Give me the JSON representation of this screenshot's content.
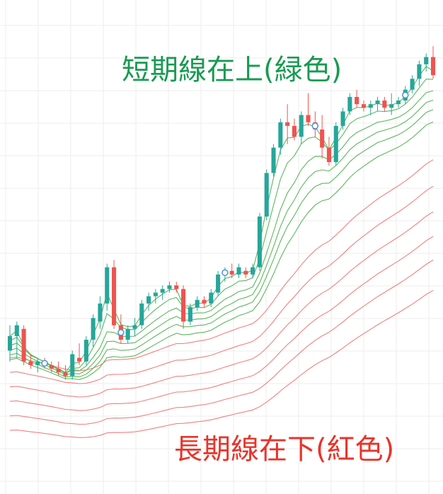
{
  "annotations": {
    "short_term": "短期線在上(緑色)",
    "long_term": "長期線在下(紅色)"
  },
  "colors": {
    "up_candle": "#26a69a",
    "down_candle": "#ef5350",
    "short_ema": "#5cb85c",
    "long_ema": "#f08080",
    "marker": "#4a90d9",
    "grid": "#eeeeee",
    "short_label": "#1a9a52",
    "long_label": "#e8342a"
  },
  "chart_data": {
    "type": "candlestick",
    "grid": true,
    "candles": [
      {
        "o": 34,
        "h": 41,
        "l": 31,
        "c": 38
      },
      {
        "o": 38,
        "h": 42,
        "l": 32,
        "c": 41
      },
      {
        "o": 40,
        "h": 41,
        "l": 30,
        "c": 31
      },
      {
        "o": 31,
        "h": 33,
        "l": 29,
        "c": 30
      },
      {
        "o": 30,
        "h": 32,
        "l": 28,
        "c": 31
      },
      {
        "o": 31,
        "h": 32,
        "l": 29,
        "c": 30
      },
      {
        "o": 30,
        "h": 31,
        "l": 28,
        "c": 29
      },
      {
        "o": 29,
        "h": 31,
        "l": 27,
        "c": 28
      },
      {
        "o": 28,
        "h": 30,
        "l": 26,
        "c": 27
      },
      {
        "o": 27,
        "h": 34,
        "l": 26,
        "c": 33
      },
      {
        "o": 32,
        "h": 36,
        "l": 30,
        "c": 31
      },
      {
        "o": 31,
        "h": 38,
        "l": 30,
        "c": 37
      },
      {
        "o": 37,
        "h": 44,
        "l": 35,
        "c": 43
      },
      {
        "o": 42,
        "h": 49,
        "l": 40,
        "c": 47
      },
      {
        "o": 47,
        "h": 58,
        "l": 45,
        "c": 57
      },
      {
        "o": 57,
        "h": 59,
        "l": 40,
        "c": 41
      },
      {
        "o": 41,
        "h": 44,
        "l": 36,
        "c": 37
      },
      {
        "o": 37,
        "h": 41,
        "l": 36,
        "c": 40
      },
      {
        "o": 40,
        "h": 43,
        "l": 38,
        "c": 41
      },
      {
        "o": 41,
        "h": 48,
        "l": 40,
        "c": 47
      },
      {
        "o": 47,
        "h": 50,
        "l": 45,
        "c": 49
      },
      {
        "o": 49,
        "h": 51,
        "l": 47,
        "c": 50
      },
      {
        "o": 50,
        "h": 52,
        "l": 48,
        "c": 51
      },
      {
        "o": 51,
        "h": 53,
        "l": 50,
        "c": 52
      },
      {
        "o": 52,
        "h": 53,
        "l": 50,
        "c": 51
      },
      {
        "o": 51,
        "h": 52,
        "l": 40,
        "c": 42
      },
      {
        "o": 42,
        "h": 47,
        "l": 41,
        "c": 46
      },
      {
        "o": 46,
        "h": 49,
        "l": 45,
        "c": 48
      },
      {
        "o": 48,
        "h": 49,
        "l": 46,
        "c": 47
      },
      {
        "o": 47,
        "h": 51,
        "l": 46,
        "c": 50
      },
      {
        "o": 50,
        "h": 56,
        "l": 49,
        "c": 55
      },
      {
        "o": 55,
        "h": 57,
        "l": 53,
        "c": 56
      },
      {
        "o": 56,
        "h": 58,
        "l": 54,
        "c": 55
      },
      {
        "o": 55,
        "h": 58,
        "l": 54,
        "c": 57
      },
      {
        "o": 56,
        "h": 57,
        "l": 54,
        "c": 55
      },
      {
        "o": 55,
        "h": 58,
        "l": 54,
        "c": 57
      },
      {
        "o": 57,
        "h": 72,
        "l": 56,
        "c": 71
      },
      {
        "o": 71,
        "h": 84,
        "l": 70,
        "c": 83
      },
      {
        "o": 83,
        "h": 91,
        "l": 82,
        "c": 90
      },
      {
        "o": 90,
        "h": 98,
        "l": 88,
        "c": 97
      },
      {
        "o": 97,
        "h": 102,
        "l": 91,
        "c": 96
      },
      {
        "o": 96,
        "h": 98,
        "l": 92,
        "c": 93
      },
      {
        "o": 93,
        "h": 100,
        "l": 91,
        "c": 99
      },
      {
        "o": 99,
        "h": 105,
        "l": 96,
        "c": 97
      },
      {
        "o": 97,
        "h": 100,
        "l": 93,
        "c": 95
      },
      {
        "o": 95,
        "h": 99,
        "l": 87,
        "c": 90
      },
      {
        "o": 90,
        "h": 93,
        "l": 85,
        "c": 86
      },
      {
        "o": 86,
        "h": 97,
        "l": 85,
        "c": 96
      },
      {
        "o": 96,
        "h": 101,
        "l": 95,
        "c": 100
      },
      {
        "o": 100,
        "h": 105,
        "l": 99,
        "c": 104
      },
      {
        "o": 104,
        "h": 106,
        "l": 101,
        "c": 102
      },
      {
        "o": 102,
        "h": 103,
        "l": 100,
        "c": 101
      },
      {
        "o": 101,
        "h": 103,
        "l": 99,
        "c": 102
      },
      {
        "o": 102,
        "h": 104,
        "l": 100,
        "c": 103
      },
      {
        "o": 103,
        "h": 104,
        "l": 100,
        "c": 101
      },
      {
        "o": 101,
        "h": 105,
        "l": 99,
        "c": 102
      },
      {
        "o": 102,
        "h": 104,
        "l": 101,
        "c": 103
      },
      {
        "o": 103,
        "h": 107,
        "l": 102,
        "c": 106
      },
      {
        "o": 106,
        "h": 110,
        "l": 105,
        "c": 109
      },
      {
        "o": 109,
        "h": 114,
        "l": 107,
        "c": 113
      },
      {
        "o": 113,
        "h": 116,
        "l": 111,
        "c": 115
      },
      {
        "o": 115,
        "h": 118,
        "l": 109,
        "c": 110
      }
    ],
    "short_ema_periods": [
      3,
      5,
      8,
      10,
      12,
      15
    ],
    "long_ema_periods": [
      30,
      35,
      40,
      45,
      50,
      60
    ],
    "markers_at": [
      5,
      16,
      31,
      44,
      57
    ],
    "ylim": [
      -4,
      120
    ]
  }
}
